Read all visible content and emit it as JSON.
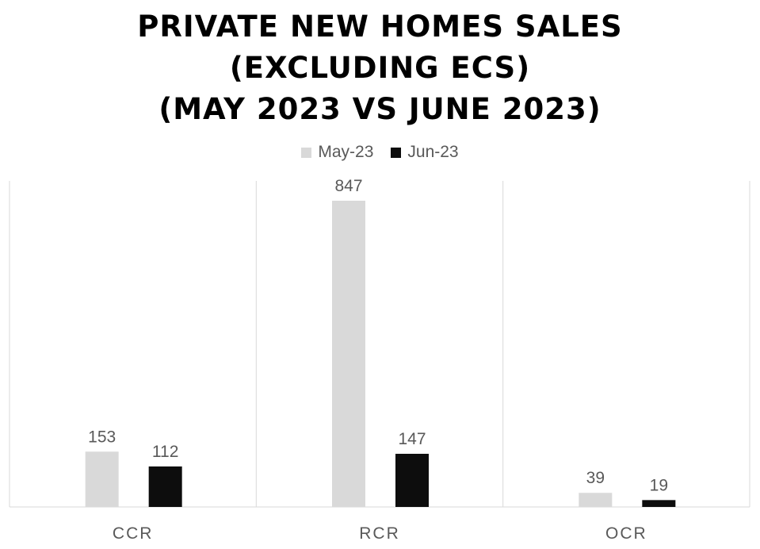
{
  "chart_data": {
    "type": "bar",
    "title_lines": [
      "PRIVATE NEW HOMES SALES",
      "(EXCLUDING ECS)",
      "(MAY 2023 VS JUNE 2023)"
    ],
    "categories": [
      "CCR",
      "RCR",
      "OCR"
    ],
    "series": [
      {
        "name": "May-23",
        "values": [
          153,
          847,
          39
        ],
        "color": "#d9d9d9"
      },
      {
        "name": "Jun-23",
        "values": [
          112,
          147,
          19
        ],
        "color": "#0d0d0d"
      }
    ],
    "ylim": [
      0,
      900
    ],
    "grid": false,
    "legend_position": "top"
  }
}
